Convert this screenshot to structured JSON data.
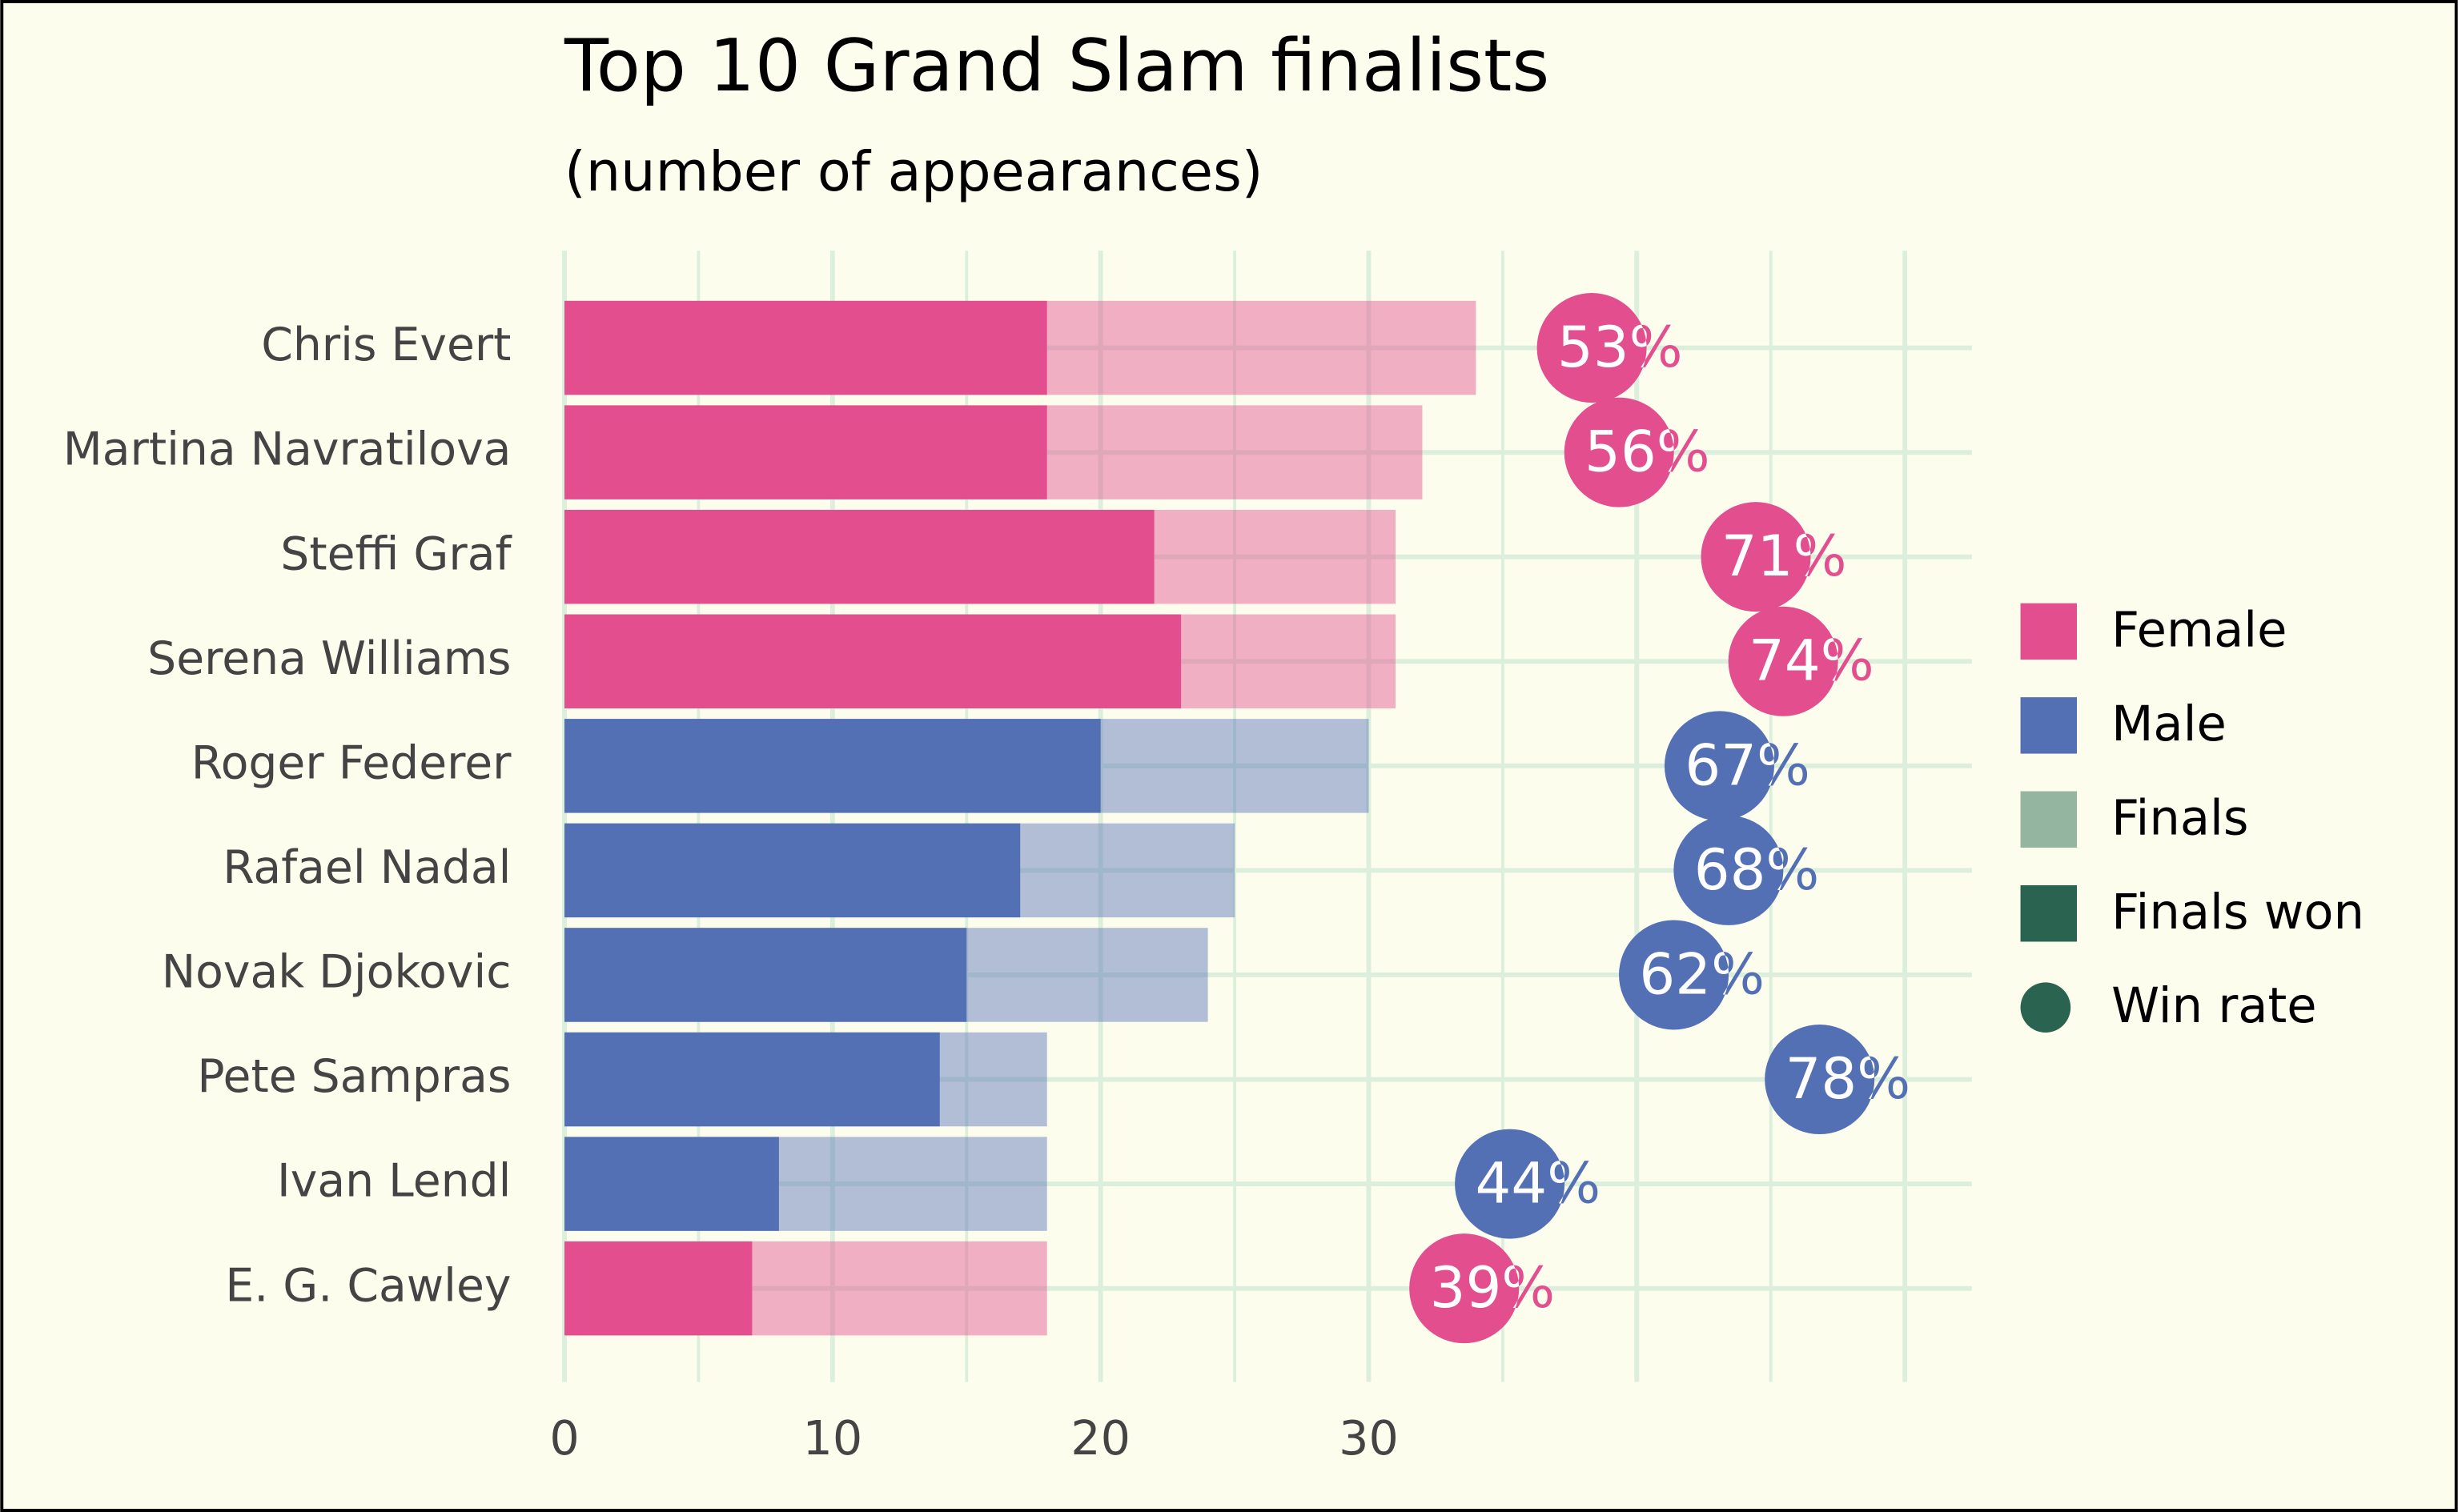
{
  "chart_data": {
    "type": "bar",
    "title": "Top 10 Grand Slam finalists",
    "subtitle": "(number of appearances)",
    "categories": [
      "Chris Evert",
      "Martina Navratilova",
      "Steffi Graf",
      "Serena Williams",
      "Roger Federer",
      "Rafael Nadal",
      "Novak Djokovic",
      "Pete Sampras",
      "Ivan Lendl",
      "E. G. Cawley"
    ],
    "group_of_category": [
      0,
      0,
      0,
      0,
      1,
      1,
      1,
      1,
      1,
      0
    ],
    "groups": [
      {
        "name": "Female",
        "color": "#e34f8e"
      },
      {
        "name": "Male",
        "color": "#5470b5"
      }
    ],
    "series": [
      {
        "name": "Finals",
        "color": "#94b59f",
        "values": [
          34,
          32,
          31,
          31,
          30,
          25,
          24,
          18,
          18,
          18
        ]
      },
      {
        "name": "Finals won",
        "color": "#2a6450",
        "values": [
          18,
          18,
          22,
          23,
          20,
          17,
          15,
          14,
          8,
          7
        ]
      }
    ],
    "win_rate": {
      "name": "Win rate",
      "color": "#2a6450",
      "values": [
        53,
        56,
        71,
        74,
        67,
        68,
        62,
        78,
        44,
        39
      ],
      "value_labels": [
        "53%",
        "56%",
        "71%",
        "74%",
        "67%",
        "68%",
        "62%",
        "78%",
        "44%",
        "39%"
      ]
    },
    "xlim": [
      0,
      52.5
    ],
    "xticks": [
      0,
      10,
      20,
      30
    ],
    "grid": true
  }
}
